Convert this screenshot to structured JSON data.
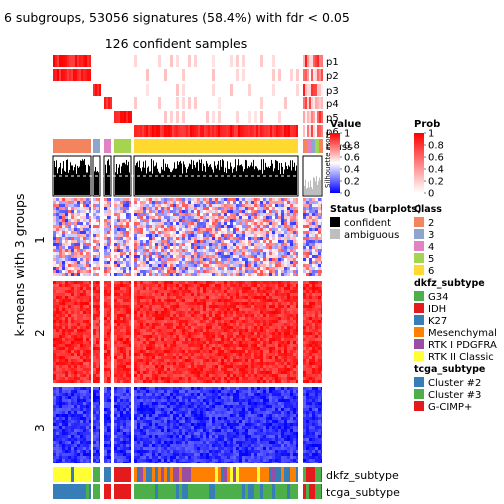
{
  "chart_data": {
    "type": "heatmap",
    "title": "6 subgroups, 53056 signatures (58.4%) with fdr < 0.05",
    "subtitle": "126 confident samples",
    "ylabel": "k-means with 3 groups",
    "row_groups": [
      "1",
      "2",
      "3"
    ],
    "row_group_fill": {
      "1": "mixed",
      "2": "high",
      "3": "low"
    },
    "column_groups": [
      {
        "class": "2",
        "n_samples": 24
      },
      {
        "class": "3",
        "n_samples": 4
      },
      {
        "class": "4",
        "n_samples": 4
      },
      {
        "class": "5",
        "n_samples": 9
      },
      {
        "class": "6",
        "n_samples": 85
      }
    ],
    "top_annotation_rows": [
      "p1",
      "p2",
      "p3",
      "p4",
      "p5",
      "p6",
      "Class",
      "Silhouette score"
    ],
    "bottom_annotation_rows": [
      "dkfz_subtype",
      "tcga_subtype"
    ],
    "value_scale": {
      "min": 0,
      "max": 1,
      "ticks": [
        0,
        0.2,
        0.4,
        0.6,
        0.8,
        1
      ]
    },
    "prob_scale": {
      "min": 0,
      "max": 1,
      "ticks": [
        0,
        0.2,
        0.4,
        0.6,
        0.8,
        1
      ]
    }
  },
  "legends": {
    "value": {
      "title": "Value",
      "ticks": [
        "0",
        "0.2",
        "0.4",
        "0.6",
        "0.8",
        "1"
      ]
    },
    "prob": {
      "title": "Prob",
      "ticks": [
        "0",
        "0.2",
        "0.4",
        "0.6",
        "0.8",
        "1"
      ]
    },
    "status": {
      "title": "Status (barplots)",
      "items": [
        {
          "label": "confident",
          "color": "#000000"
        },
        {
          "label": "ambiguous",
          "color": "#bebebe"
        }
      ]
    },
    "class": {
      "title": "Class",
      "items": [
        {
          "label": "2",
          "color": "#f4845e"
        },
        {
          "label": "3",
          "color": "#8fa6cc"
        },
        {
          "label": "4",
          "color": "#e182c2"
        },
        {
          "label": "5",
          "color": "#a5d44e"
        },
        {
          "label": "6",
          "color": "#ffd92f"
        }
      ]
    },
    "dkfz": {
      "title": "dkfz_subtype",
      "items": [
        {
          "label": "G34",
          "color": "#4daf4a"
        },
        {
          "label": "IDH",
          "color": "#e41a1c"
        },
        {
          "label": "K27",
          "color": "#377eb8"
        },
        {
          "label": "Mesenchymal",
          "color": "#ff7f00"
        },
        {
          "label": "RTK I PDGFRA",
          "color": "#984ea3"
        },
        {
          "label": "RTK II Classic",
          "color": "#ffff33"
        }
      ]
    },
    "tcga": {
      "title": "tcga_subtype",
      "items": [
        {
          "label": "Cluster #2",
          "color": "#377eb8"
        },
        {
          "label": "Cluster #3",
          "color": "#4daf4a"
        },
        {
          "label": "G-CIMP+",
          "color": "#e41a1c"
        }
      ]
    }
  }
}
